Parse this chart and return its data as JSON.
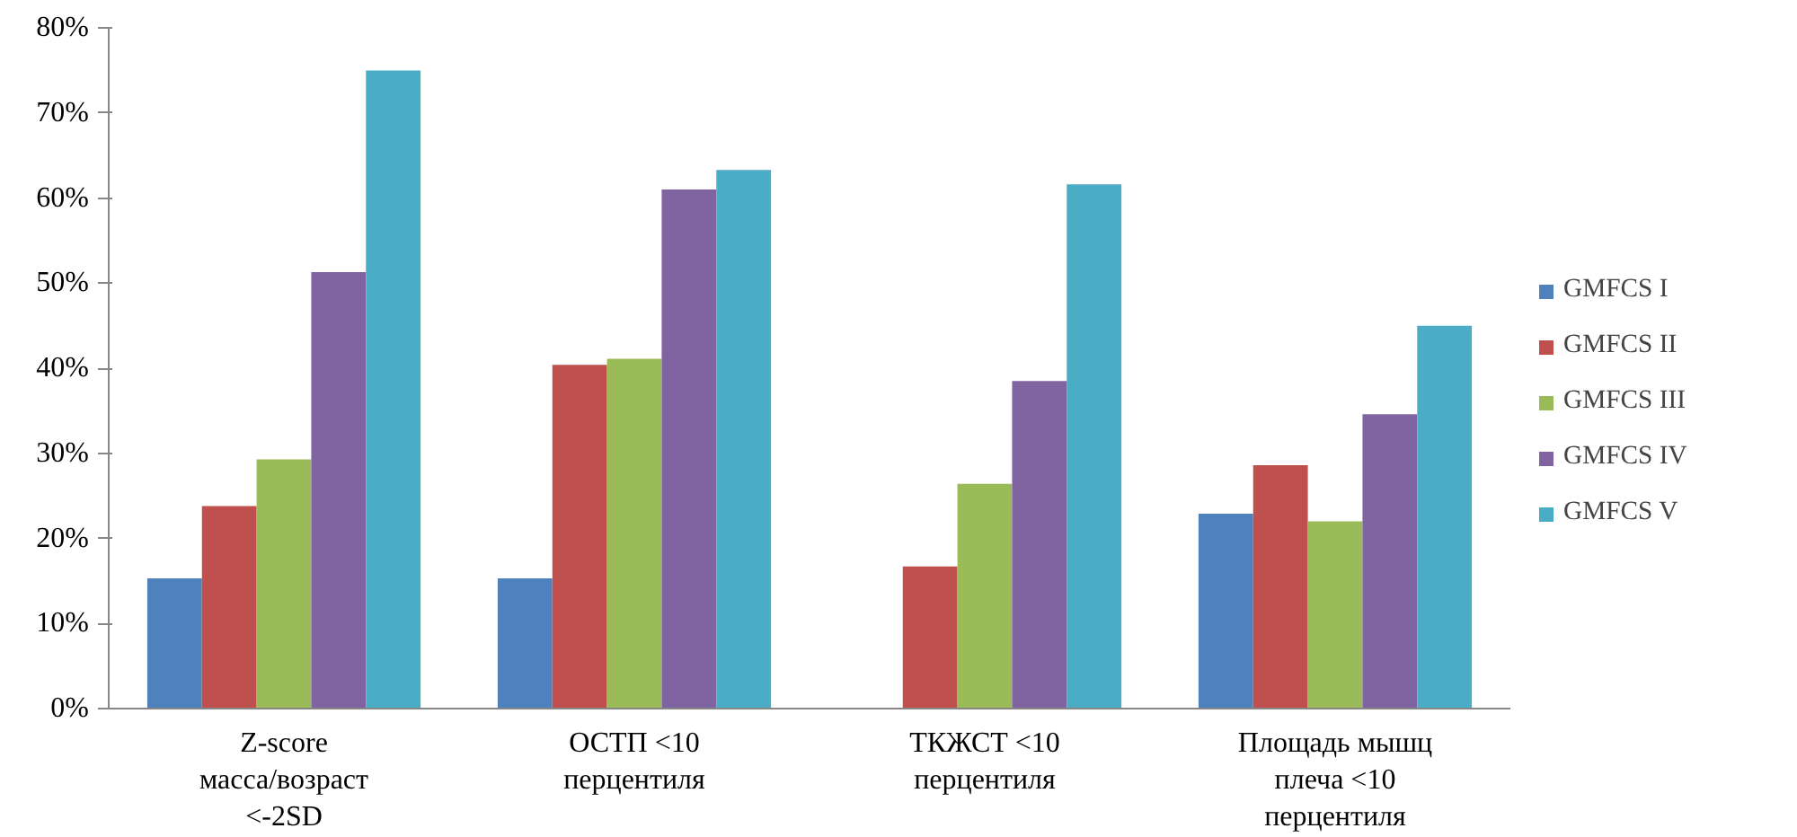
{
  "chart_data": {
    "type": "bar",
    "categories": [
      "Z-score масса/возраст <-2SD",
      "ОСТП <10 перцентиля",
      "ТКЖСТ <10 перцентиля",
      "Площадь мышц плеча <10 перцентиля"
    ],
    "series": [
      {
        "name": "GMFCS I",
        "color": "#4f81bd",
        "values": [
          15.3,
          15.3,
          0,
          22.9
        ]
      },
      {
        "name": "GMFCS II",
        "color": "#c0504d",
        "values": [
          23.8,
          40.4,
          16.7,
          28.6
        ]
      },
      {
        "name": "GMFCS III",
        "color": "#9bbb59",
        "values": [
          29.3,
          41.1,
          26.4,
          22.0
        ]
      },
      {
        "name": "GMFCS IV",
        "color": "#8064a2",
        "values": [
          51.3,
          61.0,
          38.5,
          34.6
        ]
      },
      {
        "name": "GMFCS V",
        "color": "#4bacc6",
        "values": [
          75.0,
          63.3,
          61.6,
          45.0
        ]
      }
    ],
    "ylim": [
      0,
      80
    ],
    "yticks": [
      {
        "value": 0,
        "label": "0%"
      },
      {
        "value": 10,
        "label": "10%"
      },
      {
        "value": 20,
        "label": "20%"
      },
      {
        "value": 30,
        "label": "30%"
      },
      {
        "value": 40,
        "label": "40%"
      },
      {
        "value": 50,
        "label": "50%"
      },
      {
        "value": 60,
        "label": "60%"
      },
      {
        "value": 70,
        "label": "70%"
      },
      {
        "value": 80,
        "label": "80%"
      }
    ],
    "legend": "right",
    "grid": false
  }
}
